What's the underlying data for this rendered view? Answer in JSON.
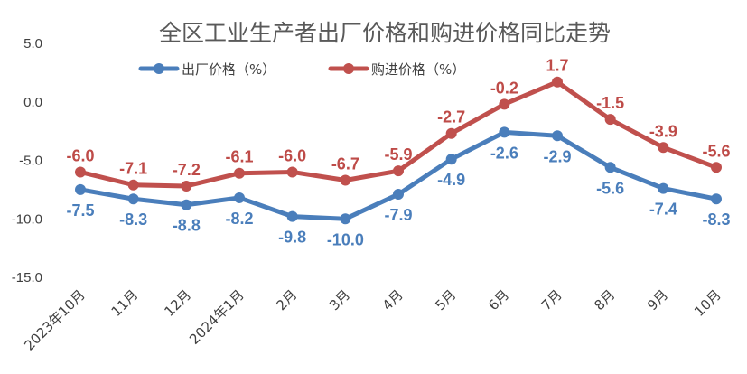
{
  "chart_data": {
    "type": "line",
    "title": "全区工业生产者出厂价格和购进价格同比走势",
    "xlabel": "",
    "ylabel": "",
    "ylim": [
      -15,
      5
    ],
    "yticks": [
      "5.0",
      "0.0",
      "-5.0",
      "-10.0",
      "-15.0"
    ],
    "ytick_values": [
      5,
      0,
      -5,
      -10,
      -15
    ],
    "grid": false,
    "legend_position": "top-left",
    "categories": [
      "2023年10月",
      "11月",
      "12月",
      "2024年1月",
      "2月",
      "3月",
      "4月",
      "5月",
      "6月",
      "7月",
      "8月",
      "9月",
      "10月"
    ],
    "series": [
      {
        "name": "出厂价格（%）",
        "color": "#4a7ebb",
        "label_color": "#4a7ebb",
        "label_position": "below",
        "values": [
          -7.5,
          -8.3,
          -8.8,
          -8.2,
          -9.8,
          -10.0,
          -7.9,
          -4.9,
          -2.6,
          -2.9,
          -5.6,
          -7.4,
          -8.3
        ],
        "labels": [
          "-7.5",
          "-8.3",
          "-8.8",
          "-8.2",
          "-9.8",
          "-10.0",
          "-7.9",
          "-4.9",
          "-2.6",
          "-2.9",
          "-5.6",
          "-7.4",
          "-8.3"
        ]
      },
      {
        "name": "购进价格（%）",
        "color": "#c0504d",
        "label_color": "#be4b48",
        "label_position": "above",
        "values": [
          -6.0,
          -7.1,
          -7.2,
          -6.1,
          -6.0,
          -6.7,
          -5.9,
          -2.7,
          -0.2,
          1.7,
          -1.5,
          -3.9,
          -5.6
        ],
        "labels": [
          "-6.0",
          "-7.1",
          "-7.2",
          "-6.1",
          "-6.0",
          "-6.7",
          "-5.9",
          "-2.7",
          "-0.2",
          "1.7",
          "-1.5",
          "-3.9",
          "-5.6"
        ]
      }
    ]
  }
}
